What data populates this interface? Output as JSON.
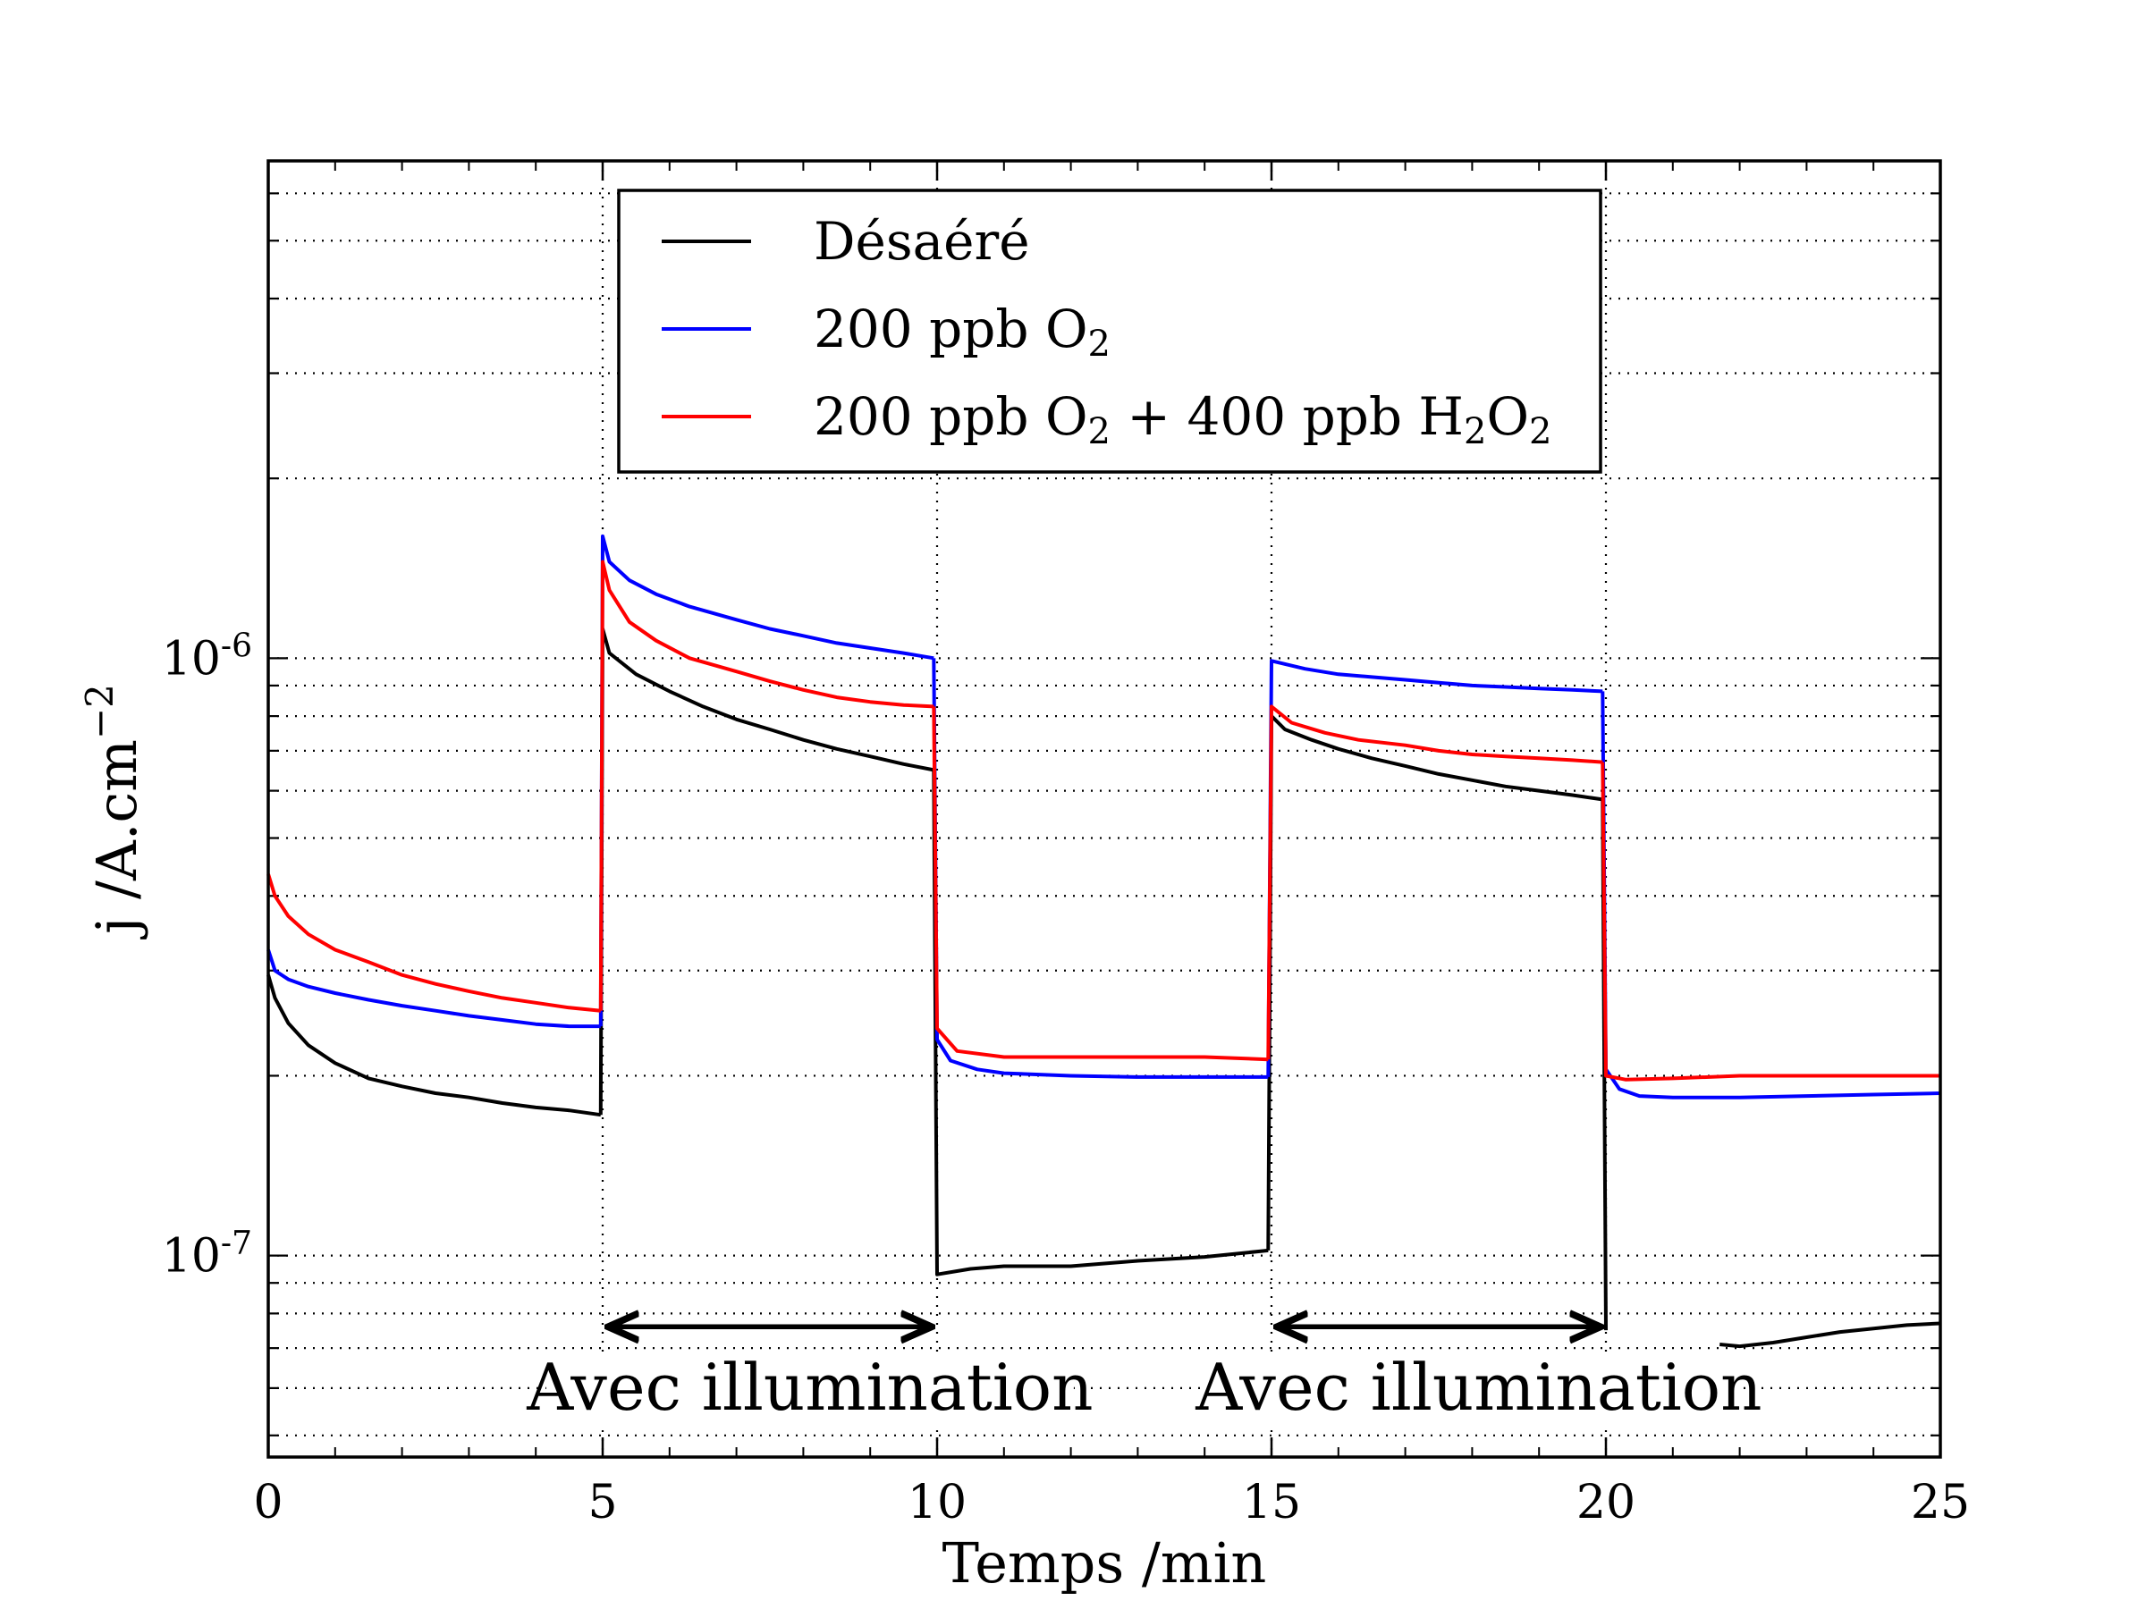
{
  "chart_data": {
    "type": "line",
    "xlabel": "Temps /min",
    "ylabel_main": "j /A.cm",
    "ylabel_sup": "−2",
    "xlim": [
      0,
      25
    ],
    "ylim": [
      4.6e-08,
      6.8e-06
    ],
    "yscale": "log",
    "grid": true,
    "x_ticks": [
      0,
      5,
      10,
      15,
      20,
      25
    ],
    "x_tick_labels": [
      "0",
      "5",
      "10",
      "15",
      "20",
      "25"
    ],
    "y_ticks": [
      {
        "value": 1e-07,
        "base": "10",
        "exp": "-7"
      },
      {
        "value": 1e-06,
        "base": "10",
        "exp": "-6"
      }
    ],
    "legend": {
      "position": "top-center",
      "entries": [
        {
          "key": "black",
          "color": "#000000",
          "parts": [
            {
              "t": "Désaéré"
            }
          ]
        },
        {
          "key": "blue",
          "color": "#0000ff",
          "parts": [
            {
              "t": "200 ppb O"
            },
            {
              "t": "2",
              "sub": true
            }
          ]
        },
        {
          "key": "red",
          "color": "#ff0000",
          "parts": [
            {
              "t": "200 ppb O"
            },
            {
              "t": "2",
              "sub": true
            },
            {
              "t": " + 400 ppb H"
            },
            {
              "t": "2",
              "sub": true
            },
            {
              "t": "O"
            },
            {
              "t": "2",
              "sub": true
            }
          ]
        }
      ]
    },
    "annotations": [
      {
        "text": "Avec illumination",
        "x_from": 5,
        "x_to": 10,
        "arrow_y": 7.6e-08,
        "text_x": 8.1,
        "text_y": 6e-08
      },
      {
        "text": "Avec illumination",
        "x_from": 15,
        "x_to": 20,
        "arrow_y": 7.6e-08,
        "text_x": 18.1,
        "text_y": 6e-08
      }
    ],
    "series": [
      {
        "key": "black",
        "name": "Désaéré",
        "color": "#000000",
        "segments": [
          [
            [
              0,
              2.95e-07
            ],
            [
              0.1,
              2.7e-07
            ],
            [
              0.3,
              2.45e-07
            ],
            [
              0.6,
              2.25e-07
            ],
            [
              1,
              2.1e-07
            ],
            [
              1.5,
              1.98e-07
            ],
            [
              2,
              1.92e-07
            ],
            [
              2.5,
              1.87e-07
            ],
            [
              3,
              1.84e-07
            ],
            [
              3.5,
              1.8e-07
            ],
            [
              4,
              1.77e-07
            ],
            [
              4.5,
              1.75e-07
            ],
            [
              4.97,
              1.72e-07
            ]
          ],
          [
            [
              4.97,
              1.72e-07
            ],
            [
              5.0,
              1.12e-06
            ],
            [
              5.1,
              1.02e-06
            ],
            [
              5.5,
              9.4e-07
            ],
            [
              6,
              8.8e-07
            ],
            [
              6.5,
              8.3e-07
            ],
            [
              7,
              7.9e-07
            ],
            [
              7.5,
              7.6e-07
            ],
            [
              8,
              7.3e-07
            ],
            [
              8.5,
              7.05e-07
            ],
            [
              9,
              6.85e-07
            ],
            [
              9.5,
              6.65e-07
            ],
            [
              9.95,
              6.5e-07
            ]
          ],
          [
            [
              9.95,
              6.5e-07
            ],
            [
              10.0,
              9.3e-08
            ],
            [
              10.5,
              9.5e-08
            ],
            [
              11,
              9.6e-08
            ],
            [
              12,
              9.6e-08
            ],
            [
              13,
              9.8e-08
            ],
            [
              14,
              9.95e-08
            ],
            [
              14.95,
              1.02e-07
            ]
          ],
          [
            [
              14.95,
              1.02e-07
            ],
            [
              15.0,
              8e-07
            ],
            [
              15.2,
              7.6e-07
            ],
            [
              15.6,
              7.3e-07
            ],
            [
              16,
              7.05e-07
            ],
            [
              16.5,
              6.8e-07
            ],
            [
              17,
              6.6e-07
            ],
            [
              17.5,
              6.4e-07
            ],
            [
              18,
              6.25e-07
            ],
            [
              18.5,
              6.1e-07
            ],
            [
              19,
              6e-07
            ],
            [
              19.5,
              5.9e-07
            ],
            [
              19.95,
              5.8e-07
            ]
          ],
          [
            [
              19.95,
              5.8e-07
            ],
            [
              20.0,
              7.5e-08
            ]
          ],
          [
            [
              21.7,
              7.1e-08
            ],
            [
              22,
              7.05e-08
            ],
            [
              22.5,
              7.15e-08
            ],
            [
              23,
              7.3e-08
            ],
            [
              23.5,
              7.45e-08
            ],
            [
              24,
              7.55e-08
            ],
            [
              24.5,
              7.65e-08
            ],
            [
              25,
              7.7e-08
            ]
          ]
        ]
      },
      {
        "key": "blue",
        "name": "200 ppb O2",
        "color": "#0000ff",
        "segments": [
          [
            [
              0,
              3.25e-07
            ],
            [
              0.1,
              3e-07
            ],
            [
              0.3,
              2.9e-07
            ],
            [
              0.6,
              2.82e-07
            ],
            [
              1,
              2.75e-07
            ],
            [
              1.5,
              2.68e-07
            ],
            [
              2,
              2.62e-07
            ],
            [
              2.5,
              2.57e-07
            ],
            [
              3,
              2.52e-07
            ],
            [
              3.5,
              2.48e-07
            ],
            [
              4,
              2.44e-07
            ],
            [
              4.5,
              2.42e-07
            ],
            [
              4.97,
              2.42e-07
            ]
          ],
          [
            [
              4.97,
              2.42e-07
            ],
            [
              5.0,
              1.6e-06
            ],
            [
              5.1,
              1.45e-06
            ],
            [
              5.4,
              1.35e-06
            ],
            [
              5.8,
              1.28e-06
            ],
            [
              6.3,
              1.22e-06
            ],
            [
              7,
              1.16e-06
            ],
            [
              7.5,
              1.12e-06
            ],
            [
              8,
              1.09e-06
            ],
            [
              8.5,
              1.06e-06
            ],
            [
              9,
              1.04e-06
            ],
            [
              9.5,
              1.02e-06
            ],
            [
              9.95,
              1e-06
            ]
          ],
          [
            [
              9.95,
              1e-06
            ],
            [
              10.0,
              2.3e-07
            ],
            [
              10.2,
              2.12e-07
            ],
            [
              10.6,
              2.05e-07
            ],
            [
              11,
              2.02e-07
            ],
            [
              12,
              2e-07
            ],
            [
              13,
              1.99e-07
            ],
            [
              14,
              1.99e-07
            ],
            [
              14.95,
              1.99e-07
            ]
          ],
          [
            [
              14.95,
              1.99e-07
            ],
            [
              15.0,
              9.9e-07
            ],
            [
              15.5,
              9.6e-07
            ],
            [
              16,
              9.4e-07
            ],
            [
              16.5,
              9.3e-07
            ],
            [
              17,
              9.2e-07
            ],
            [
              17.5,
              9.1e-07
            ],
            [
              18,
              9e-07
            ],
            [
              18.5,
              8.95e-07
            ],
            [
              19,
              8.9e-07
            ],
            [
              19.5,
              8.85e-07
            ],
            [
              19.95,
              8.8e-07
            ]
          ],
          [
            [
              19.95,
              8.8e-07
            ],
            [
              20.0,
              2.05e-07
            ],
            [
              20.2,
              1.9e-07
            ],
            [
              20.5,
              1.85e-07
            ],
            [
              21,
              1.84e-07
            ],
            [
              22,
              1.84e-07
            ],
            [
              23,
              1.85e-07
            ],
            [
              24,
              1.86e-07
            ],
            [
              25,
              1.87e-07
            ]
          ]
        ]
      },
      {
        "key": "red",
        "name": "200 ppb O2 + 400 ppb H2O2",
        "color": "#ff0000",
        "segments": [
          [
            [
              0,
              4.35e-07
            ],
            [
              0.1,
              4e-07
            ],
            [
              0.3,
              3.7e-07
            ],
            [
              0.6,
              3.45e-07
            ],
            [
              1,
              3.25e-07
            ],
            [
              1.5,
              3.1e-07
            ],
            [
              2,
              2.95e-07
            ],
            [
              2.5,
              2.85e-07
            ],
            [
              3,
              2.77e-07
            ],
            [
              3.5,
              2.7e-07
            ],
            [
              4,
              2.65e-07
            ],
            [
              4.5,
              2.6e-07
            ],
            [
              4.97,
              2.57e-07
            ]
          ],
          [
            [
              4.97,
              2.57e-07
            ],
            [
              5.0,
              1.45e-06
            ],
            [
              5.1,
              1.3e-06
            ],
            [
              5.4,
              1.15e-06
            ],
            [
              5.8,
              1.07e-06
            ],
            [
              6.3,
              1e-06
            ],
            [
              7,
              9.5e-07
            ],
            [
              7.5,
              9.15e-07
            ],
            [
              8,
              8.85e-07
            ],
            [
              8.5,
              8.6e-07
            ],
            [
              9,
              8.45e-07
            ],
            [
              9.5,
              8.35e-07
            ],
            [
              9.95,
              8.3e-07
            ]
          ],
          [
            [
              9.95,
              8.3e-07
            ],
            [
              10.0,
              2.4e-07
            ],
            [
              10.3,
              2.2e-07
            ],
            [
              11,
              2.15e-07
            ],
            [
              12,
              2.15e-07
            ],
            [
              13,
              2.15e-07
            ],
            [
              14,
              2.15e-07
            ],
            [
              14.95,
              2.13e-07
            ]
          ],
          [
            [
              14.95,
              2.13e-07
            ],
            [
              15.0,
              8.3e-07
            ],
            [
              15.3,
              7.8e-07
            ],
            [
              15.8,
              7.5e-07
            ],
            [
              16.3,
              7.3e-07
            ],
            [
              17,
              7.15e-07
            ],
            [
              17.5,
              7e-07
            ],
            [
              18,
              6.9e-07
            ],
            [
              18.5,
              6.85e-07
            ],
            [
              19,
              6.8e-07
            ],
            [
              19.5,
              6.75e-07
            ],
            [
              19.95,
              6.7e-07
            ]
          ],
          [
            [
              19.95,
              6.7e-07
            ],
            [
              20.0,
              2e-07
            ],
            [
              20.3,
              1.97e-07
            ],
            [
              21,
              1.98e-07
            ],
            [
              22,
              2e-07
            ],
            [
              23,
              2e-07
            ],
            [
              24,
              2e-07
            ],
            [
              25,
              2e-07
            ]
          ]
        ]
      }
    ]
  }
}
